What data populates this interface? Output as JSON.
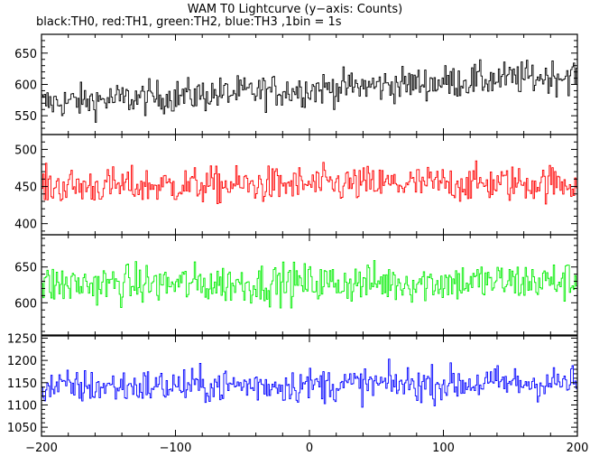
{
  "chart_data": {
    "type": "line",
    "title": "WAM T0 Lightcurve (y−axis: Counts)",
    "subtitle": "black:TH0, red:TH1, green:TH2, blue:TH3 ,1bin = 1s",
    "xlim": [
      -200,
      200
    ],
    "x_ticks": [
      -200,
      -100,
      0,
      100,
      200
    ],
    "x_tick_labels": [
      "−200",
      "−100",
      "0",
      "100",
      "200"
    ],
    "bin_seconds": 1,
    "panels": [
      {
        "series": "TH0",
        "color": "#000000",
        "ylim": [
          520,
          680
        ],
        "y_ticks": [
          550,
          600,
          650
        ],
        "mean_start": 570,
        "mean_end": 615,
        "noise": 24,
        "x": [
          -200,
          -150,
          -100,
          -50,
          0,
          50,
          100,
          150,
          200
        ],
        "y": [
          570,
          575,
          580,
          585,
          590,
          600,
          605,
          608,
          615
        ]
      },
      {
        "series": "TH1",
        "color": "#ff0000",
        "ylim": [
          385,
          520
        ],
        "y_ticks": [
          400,
          450,
          500
        ],
        "mean_start": 450,
        "mean_end": 455,
        "noise": 22,
        "x": [
          -200,
          -150,
          -100,
          -50,
          0,
          50,
          100,
          150,
          200
        ],
        "y": [
          455,
          448,
          452,
          450,
          453,
          450,
          455,
          452,
          455
        ]
      },
      {
        "series": "TH2",
        "color": "#00ee00",
        "ylim": [
          555,
          695
        ],
        "y_ticks": [
          600,
          650
        ],
        "mean_start": 625,
        "mean_end": 630,
        "noise": 25,
        "x": [
          -200,
          -150,
          -100,
          -50,
          0,
          50,
          100,
          150,
          200
        ],
        "y": [
          625,
          625,
          628,
          625,
          630,
          628,
          632,
          628,
          630
        ]
      },
      {
        "series": "TH3",
        "color": "#0000ff",
        "ylim": [
          1030,
          1255
        ],
        "y_ticks": [
          1050,
          1100,
          1150,
          1200,
          1250
        ],
        "mean_start": 1140,
        "mean_end": 1150,
        "noise": 35,
        "x": [
          -200,
          -150,
          -100,
          -50,
          0,
          50,
          100,
          150,
          200
        ],
        "y": [
          1140,
          1145,
          1148,
          1145,
          1150,
          1148,
          1160,
          1150,
          1148
        ]
      }
    ]
  }
}
